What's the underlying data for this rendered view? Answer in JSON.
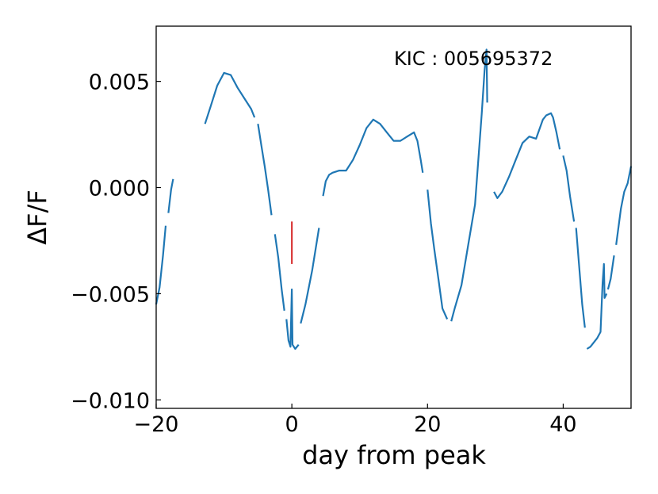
{
  "chart_data": {
    "type": "line",
    "title": "",
    "xlabel": "day from peak",
    "ylabel": "ΔF/F",
    "xlim": [
      -20,
      50
    ],
    "ylim": [
      -0.0104,
      0.0076
    ],
    "xticks": [
      -20,
      0,
      20,
      40
    ],
    "xtick_labels": [
      "−20",
      "0",
      "20",
      "40"
    ],
    "yticks": [
      -0.01,
      -0.005,
      0.0,
      0.005
    ],
    "ytick_labels": [
      "−0.010",
      "−0.005",
      "0.000",
      "0.005"
    ],
    "grid": false,
    "legend": "none",
    "annotation": "KIC : 005695372",
    "colors": {
      "series": "#1f77b4",
      "marker": "#d62728"
    },
    "series": [
      {
        "segments": [
          [
            [
              -20.0,
              -0.0055
            ],
            [
              -19.5,
              -0.0047
            ],
            [
              -19.0,
              -0.0032
            ],
            [
              -18.6,
              -0.0018
            ]
          ],
          [
            [
              -18.2,
              -0.0012
            ],
            [
              -17.8,
              -0.0001
            ],
            [
              -17.5,
              0.0004
            ]
          ],
          [
            [
              -12.8,
              0.003
            ],
            [
              -12.0,
              0.0038
            ],
            [
              -11.0,
              0.0048
            ],
            [
              -10.0,
              0.0054
            ],
            [
              -9.0,
              0.0053
            ],
            [
              -8.0,
              0.0047
            ],
            [
              -7.0,
              0.0042
            ],
            [
              -6.0,
              0.0037
            ],
            [
              -5.5,
              0.0033
            ]
          ],
          [
            [
              -5.0,
              0.003
            ],
            [
              -4.5,
              0.002
            ],
            [
              -4.0,
              0.001
            ],
            [
              -3.5,
              -0.0001
            ],
            [
              -3.0,
              -0.0013
            ]
          ],
          [
            [
              -2.5,
              -0.0022
            ],
            [
              -2.0,
              -0.0033
            ],
            [
              -1.5,
              -0.0048
            ],
            [
              -1.1,
              -0.0058
            ]
          ],
          [
            [
              -0.8,
              -0.0062
            ],
            [
              -0.5,
              -0.0072
            ],
            [
              -0.2,
              -0.0075
            ],
            [
              0.0,
              -0.0048
            ],
            [
              0.1,
              -0.0074
            ],
            [
              0.5,
              -0.0076
            ],
            [
              1.0,
              -0.0074
            ]
          ],
          [
            [
              1.3,
              -0.0064
            ],
            [
              2.0,
              -0.0055
            ],
            [
              3.0,
              -0.0039
            ],
            [
              4.0,
              -0.0019
            ]
          ],
          [
            [
              4.6,
              -0.0004
            ],
            [
              5.0,
              0.0003
            ],
            [
              5.5,
              0.0006
            ],
            [
              6.0,
              0.0007
            ],
            [
              7.0,
              0.0008
            ],
            [
              8.0,
              0.0008
            ],
            [
              9.0,
              0.0013
            ],
            [
              10.0,
              0.002
            ],
            [
              11.0,
              0.0028
            ],
            [
              12.0,
              0.0032
            ],
            [
              13.0,
              0.003
            ],
            [
              14.0,
              0.0026
            ],
            [
              15.0,
              0.0022
            ],
            [
              16.0,
              0.0022
            ],
            [
              17.0,
              0.0024
            ],
            [
              18.0,
              0.0026
            ],
            [
              18.5,
              0.0022
            ],
            [
              19.0,
              0.0013
            ],
            [
              19.3,
              0.0007
            ]
          ],
          [
            [
              20.0,
              -0.0001
            ],
            [
              20.5,
              -0.0017
            ],
            [
              21.0,
              -0.0029
            ],
            [
              21.6,
              -0.0043
            ],
            [
              22.2,
              -0.0057
            ],
            [
              22.9,
              -0.0062
            ]
          ],
          [
            [
              23.5,
              -0.0063
            ],
            [
              24.0,
              -0.0057
            ],
            [
              25.0,
              -0.0046
            ],
            [
              26.0,
              -0.0027
            ],
            [
              27.0,
              -0.0008
            ],
            [
              28.0,
              0.0035
            ],
            [
              28.4,
              0.0055
            ],
            [
              28.7,
              0.0065
            ],
            [
              28.8,
              0.004
            ]
          ],
          [
            [
              29.8,
              -0.0002
            ],
            [
              30.3,
              -0.0005
            ],
            [
              31.0,
              -0.0002
            ],
            [
              32.0,
              0.0005
            ],
            [
              33.0,
              0.0013
            ],
            [
              34.0,
              0.0021
            ],
            [
              35.0,
              0.0024
            ],
            [
              36.0,
              0.0023
            ],
            [
              37.0,
              0.0032
            ],
            [
              37.5,
              0.0034
            ],
            [
              38.2,
              0.0035
            ],
            [
              38.5,
              0.0033
            ],
            [
              39.0,
              0.0026
            ],
            [
              39.5,
              0.0018
            ]
          ],
          [
            [
              40.0,
              0.0015
            ],
            [
              40.5,
              0.0008
            ],
            [
              41.0,
              -0.0004
            ],
            [
              41.6,
              -0.0016
            ]
          ],
          [
            [
              41.9,
              -0.0019
            ],
            [
              42.3,
              -0.0035
            ],
            [
              42.8,
              -0.0055
            ],
            [
              43.2,
              -0.0066
            ]
          ],
          [
            [
              43.5,
              -0.0076
            ],
            [
              44.0,
              -0.0075
            ],
            [
              45.0,
              -0.0071
            ],
            [
              45.5,
              -0.0068
            ],
            [
              45.8,
              -0.0045
            ],
            [
              46.0,
              -0.0036
            ],
            [
              46.1,
              -0.0052
            ],
            [
              46.4,
              -0.005
            ]
          ],
          [
            [
              46.6,
              -0.0048
            ],
            [
              47.0,
              -0.0043
            ],
            [
              47.5,
              -0.0032
            ]
          ],
          [
            [
              47.8,
              -0.0027
            ],
            [
              48.5,
              -0.001
            ],
            [
              49.0,
              -0.0002
            ],
            [
              49.5,
              0.0002
            ],
            [
              50.0,
              0.001
            ]
          ]
        ]
      }
    ],
    "peak_marker": {
      "x": 0,
      "y_range": [
        -0.0036,
        -0.0016
      ]
    }
  }
}
